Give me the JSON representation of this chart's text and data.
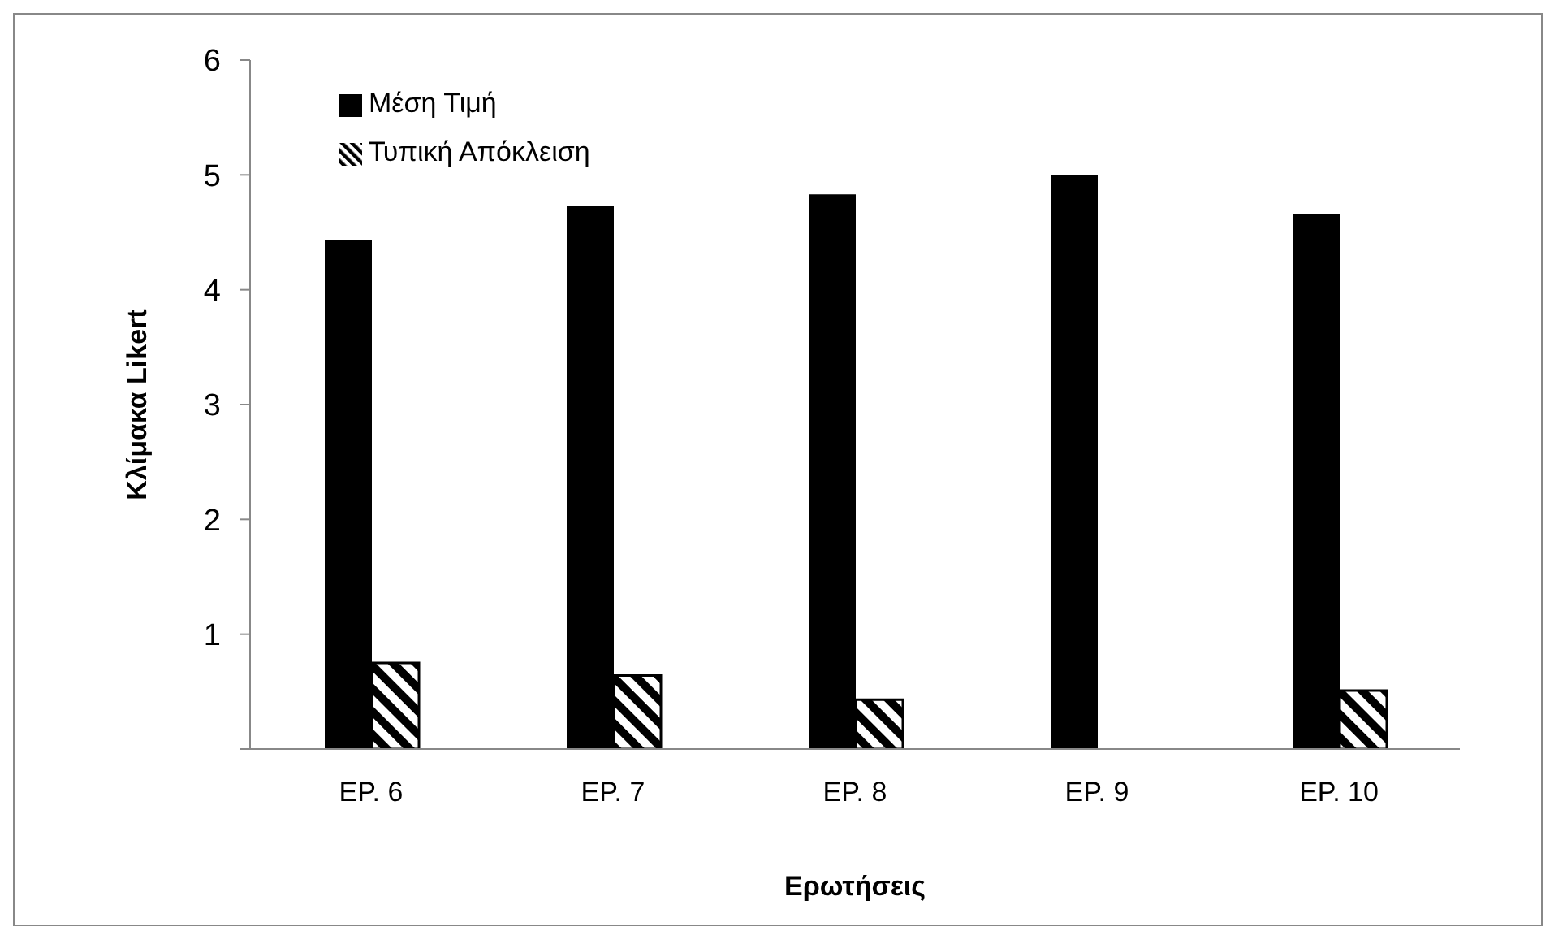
{
  "chart_data": {
    "type": "bar",
    "xlabel": "Ερωτήσεις",
    "ylabel": "Κλίμακα Likert",
    "categories": [
      "ΕΡ. 6",
      "ΕΡ. 7",
      "ΕΡ. 8",
      "ΕΡ. 9",
      "ΕΡ. 10"
    ],
    "series": [
      {
        "name": "Μέση Τιμή",
        "color": "#000000",
        "values": [
          4.43,
          4.73,
          4.83,
          5.0,
          4.66
        ]
      },
      {
        "name": "Τυπική Απόκλειση",
        "color": "#000000",
        "values": [
          0.75,
          0.64,
          0.43,
          0,
          0.51
        ]
      }
    ],
    "ylim": [
      0,
      6
    ],
    "yticks": [
      {
        "value": 0,
        "label": null
      },
      1,
      2,
      3,
      4,
      5,
      6
    ],
    "grid": false,
    "legend": "top left"
  }
}
